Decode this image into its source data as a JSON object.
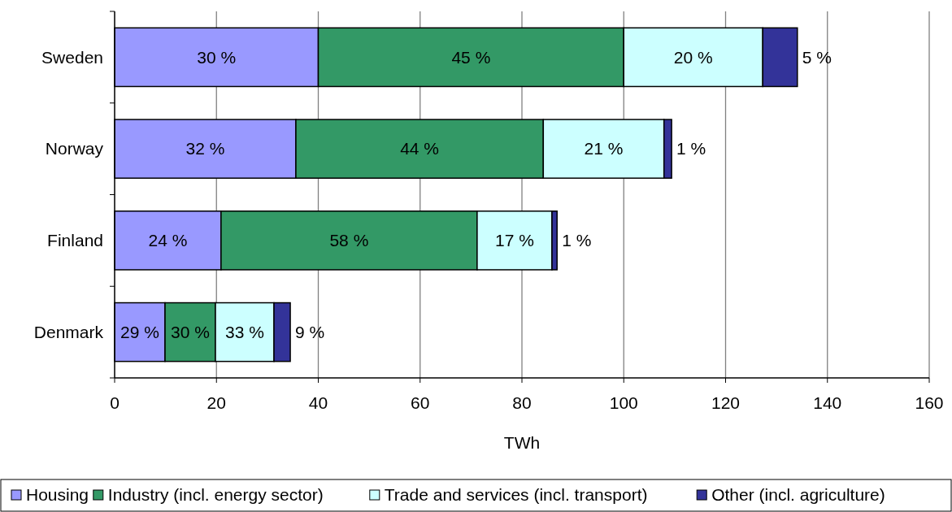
{
  "chart_data": {
    "type": "bar",
    "orientation": "horizontal",
    "stacked": true,
    "xlabel": "TWh",
    "categories": [
      "Sweden",
      "Norway",
      "Finland",
      "Denmark"
    ],
    "series": [
      {
        "name": "Housing",
        "color": "#9999ff",
        "values": [
          40,
          35.6,
          20.9,
          9.9
        ]
      },
      {
        "name": "Industry (incl. energy sector)",
        "color": "#339966",
        "values": [
          60,
          48.6,
          50.3,
          9.9
        ]
      },
      {
        "name": "Trade and services (incl. transport)",
        "color": "#ccffff",
        "values": [
          27.3,
          23.7,
          14.7,
          11.5
        ]
      },
      {
        "name": "Other (incl. agriculture)",
        "color": "#333399",
        "values": [
          6.8,
          1.5,
          1.0,
          3.2
        ]
      }
    ],
    "annotations": [
      "30 %",
      "45 %",
      "20 %",
      "5 %",
      "32 %",
      "44 %",
      "21 %",
      "1 %",
      "24 %",
      "58 %",
      "17 %",
      "1 %",
      "29 %",
      "30 %",
      "33 %",
      "9 %"
    ],
    "xlim": [
      0,
      160
    ],
    "xticks": [
      0,
      20,
      40,
      60,
      80,
      100,
      120,
      140,
      160
    ],
    "grid": "x",
    "legend": "bottom"
  }
}
